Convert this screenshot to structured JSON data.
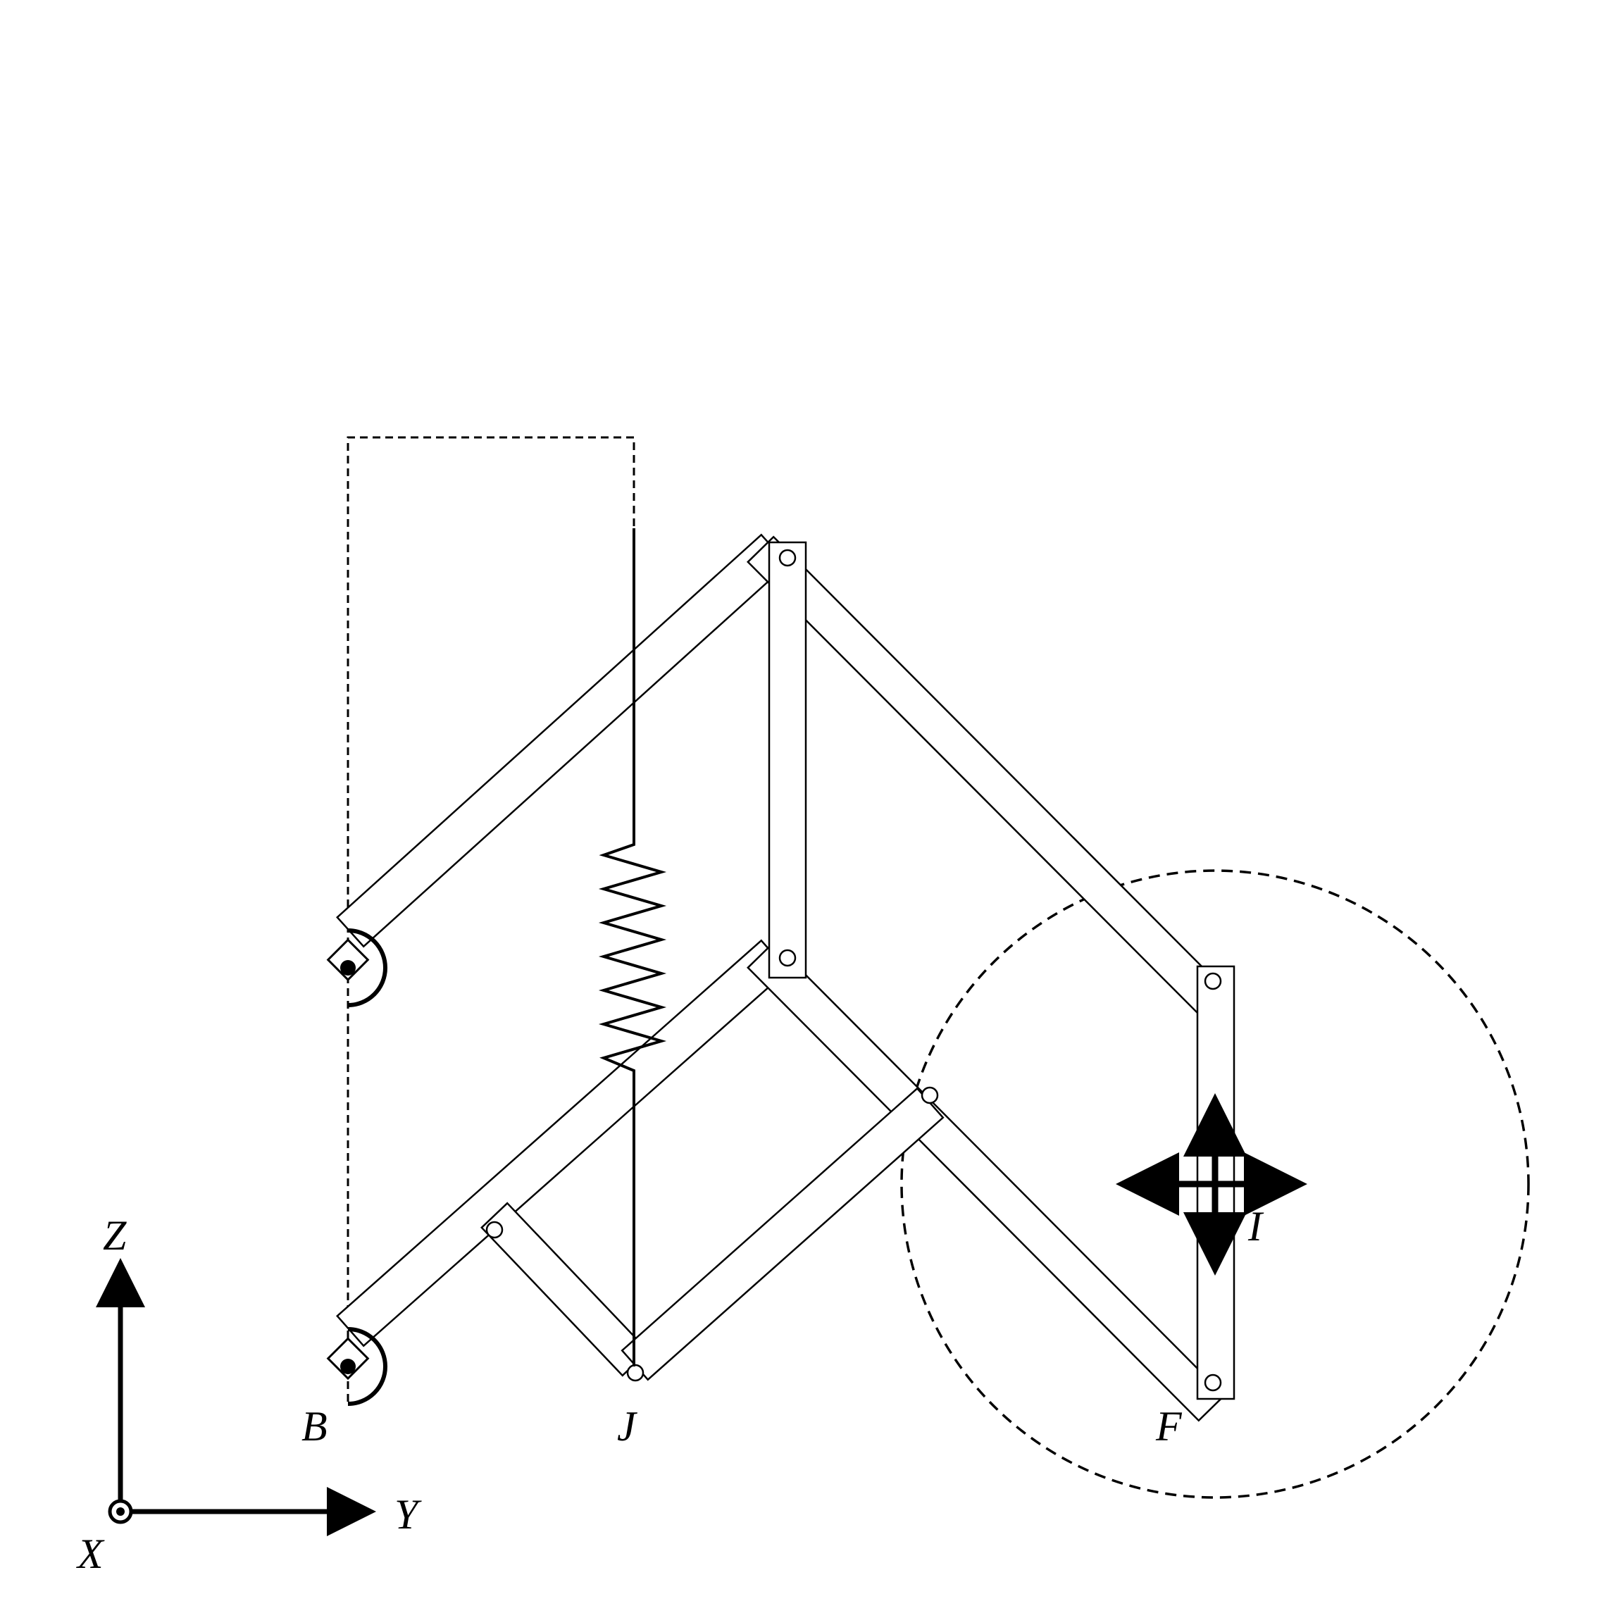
{
  "labels": {
    "B": "B",
    "J": "J",
    "F": "F",
    "I": "I",
    "axis_z": "Z",
    "axis_y": "Y",
    "axis_x": "X"
  },
  "colors": {
    "ink": "#000000",
    "background": "#ffffff"
  },
  "icons": {
    "axis_origin": "circled-dot-icon",
    "base_joints": "half-circle-pivot-icon",
    "planar_motion": "four-way-arrow-icon"
  }
}
